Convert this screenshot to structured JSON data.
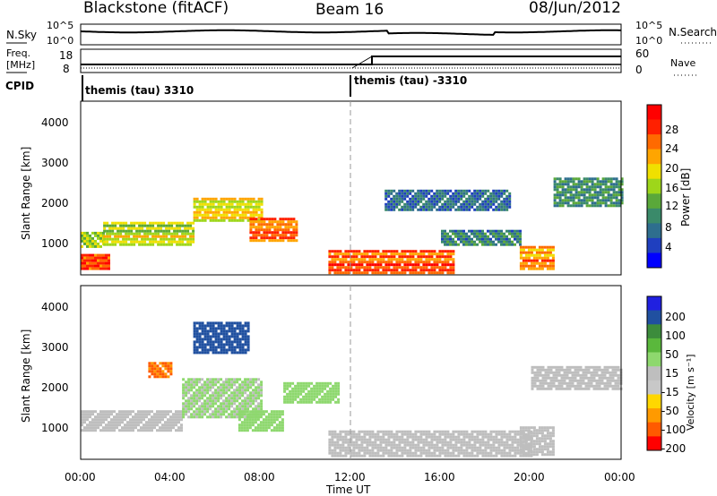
{
  "header": {
    "station": "Blackstone (fitACF)",
    "beam": "Beam 16",
    "date": "08/Jun/2012"
  },
  "top_panels": {
    "nsky_label": "N.Sky",
    "nsearch_label": "N.Search",
    "nsky_ticks": [
      "10^5",
      "10^0"
    ],
    "nsearch_ticks": [
      "10^5",
      "10^0"
    ],
    "freq_label_line1": "Freq.",
    "freq_label_line2": "[MHz]",
    "freq_ticks": [
      "18",
      "8"
    ],
    "nave_label": "Nave",
    "nave_ticks": [
      "60",
      "0"
    ],
    "cpid_label": "CPID",
    "cpid_entries": [
      {
        "text": "themis (tau) 3310",
        "start_hour": 0
      },
      {
        "text": "themis (tau) -3310",
        "start_hour": 12
      }
    ]
  },
  "x_axis": {
    "label": "Time UT",
    "ticks": [
      "00:00",
      "04:00",
      "08:00",
      "12:00",
      "16:00",
      "20:00",
      "00:00"
    ]
  },
  "colors": {
    "power": [
      "#0000ff",
      "#1f3fbf",
      "#2e6e8e",
      "#3a8a6a",
      "#5aa83a",
      "#9ed61a",
      "#f0e000",
      "#ffa500",
      "#ff6a00",
      "#ff2000",
      "#ff0000"
    ],
    "velocity": [
      "#2020e0",
      "#2050a0",
      "#3c8c3c",
      "#5ab83c",
      "#8ed86e",
      "#bebebe",
      "#c8c8c8",
      "#ffd700",
      "#ff9a00",
      "#ff5a00",
      "#ff0000"
    ]
  },
  "chart_data": [
    {
      "type": "heatmap",
      "title": "",
      "xlabel": "",
      "ylabel": "Slant Range [km]",
      "xlim": [
        0,
        24
      ],
      "ylim": [
        180,
        4500
      ],
      "yticks": [
        "1000",
        "2000",
        "3000",
        "4000"
      ],
      "colorbar_label": "Power [dB]",
      "colorbar_ticks": [
        "4",
        "8",
        "12",
        "16",
        "20",
        "24",
        "28"
      ],
      "colorbar_range": [
        0,
        30
      ],
      "bands": [
        {
          "t0": 0.0,
          "t1": 1.3,
          "r0": 250,
          "r1": 700,
          "value": 26
        },
        {
          "t0": 0.0,
          "t1": 1.0,
          "r0": 850,
          "r1": 1250,
          "value": 15
        },
        {
          "t0": 1.0,
          "t1": 5.0,
          "r0": 900,
          "r1": 1500,
          "value": 16
        },
        {
          "t0": 5.0,
          "t1": 8.0,
          "r0": 1500,
          "r1": 2100,
          "value": 18
        },
        {
          "t0": 7.5,
          "t1": 9.6,
          "r0": 1000,
          "r1": 1600,
          "value": 24
        },
        {
          "t0": 11.0,
          "t1": 16.5,
          "r0": 250,
          "r1": 800,
          "value": 25
        },
        {
          "t0": 16.0,
          "t1": 19.5,
          "r0": 900,
          "r1": 1300,
          "value": 8
        },
        {
          "t0": 19.5,
          "t1": 21.0,
          "r0": 300,
          "r1": 900,
          "value": 22
        },
        {
          "t0": 21.0,
          "t1": 24.0,
          "r0": 1900,
          "r1": 2600,
          "value": 9
        },
        {
          "t0": 13.5,
          "t1": 19.0,
          "r0": 1800,
          "r1": 2300,
          "value": 6
        }
      ]
    },
    {
      "type": "heatmap",
      "title": "",
      "xlabel": "Time UT",
      "ylabel": "Slant Range [km]",
      "xlim": [
        0,
        24
      ],
      "ylim": [
        180,
        4500
      ],
      "yticks": [
        "1000",
        "2000",
        "3000",
        "4000"
      ],
      "colorbar_label": "Velocity [m s^-1]",
      "colorbar_ticks": [
        "200",
        "100",
        "50",
        "15",
        "-15",
        "-50",
        "-100",
        "-200"
      ],
      "colorbar_range": [
        -250,
        250
      ],
      "bands": [
        {
          "t0": 0.0,
          "t1": 4.5,
          "r0": 900,
          "r1": 1400,
          "value": 0
        },
        {
          "t0": 4.5,
          "t1": 8.0,
          "r0": 1200,
          "r1": 2200,
          "value": 30
        },
        {
          "t0": 7.0,
          "t1": 9.0,
          "r0": 900,
          "r1": 1400,
          "value": 60
        },
        {
          "t0": 5.0,
          "t1": 7.5,
          "r0": 2800,
          "r1": 3600,
          "value": 200
        },
        {
          "t0": 3.0,
          "t1": 4.0,
          "r0": 2200,
          "r1": 2600,
          "value": -180
        },
        {
          "t0": 9.0,
          "t1": 11.5,
          "r0": 1600,
          "r1": 2100,
          "value": 40
        },
        {
          "t0": 11.0,
          "t1": 20.0,
          "r0": 250,
          "r1": 900,
          "value": -5
        },
        {
          "t0": 20.0,
          "t1": 24.0,
          "r0": 1900,
          "r1": 2500,
          "value": 5
        },
        {
          "t0": 19.5,
          "t1": 21.0,
          "r0": 300,
          "r1": 1000,
          "value": 0
        }
      ]
    }
  ]
}
